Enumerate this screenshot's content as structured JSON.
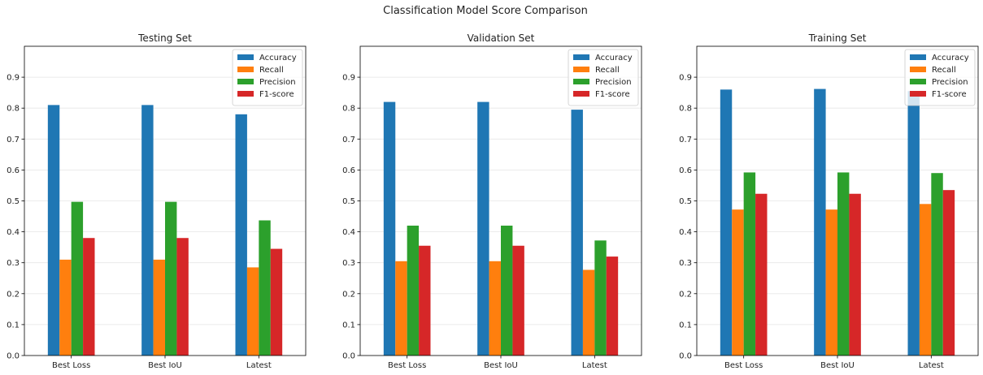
{
  "figure": {
    "suptitle": "Classification Model Score Comparison"
  },
  "chart_data": [
    {
      "type": "bar",
      "title": "Testing Set",
      "categories": [
        "Best Loss",
        "Best IoU",
        "Latest"
      ],
      "series": [
        {
          "name": "Accuracy",
          "values": [
            0.81,
            0.81,
            0.78
          ]
        },
        {
          "name": "Recall",
          "values": [
            0.31,
            0.31,
            0.285
          ]
        },
        {
          "name": "Precision",
          "values": [
            0.497,
            0.497,
            0.437
          ]
        },
        {
          "name": "F1-score",
          "values": [
            0.38,
            0.38,
            0.345
          ]
        }
      ],
      "ylim": [
        0,
        1.0
      ],
      "yticks": [
        "0.0",
        "0.1",
        "0.2",
        "0.3",
        "0.4",
        "0.5",
        "0.6",
        "0.7",
        "0.8",
        "0.9"
      ],
      "grid": "horizontal",
      "legend_position": "top-right",
      "xlabel": "",
      "ylabel": ""
    },
    {
      "type": "bar",
      "title": "Validation Set",
      "categories": [
        "Best Loss",
        "Best IoU",
        "Latest"
      ],
      "series": [
        {
          "name": "Accuracy",
          "values": [
            0.82,
            0.82,
            0.795
          ]
        },
        {
          "name": "Recall",
          "values": [
            0.305,
            0.305,
            0.277
          ]
        },
        {
          "name": "Precision",
          "values": [
            0.42,
            0.42,
            0.372
          ]
        },
        {
          "name": "F1-score",
          "values": [
            0.355,
            0.355,
            0.32
          ]
        }
      ],
      "ylim": [
        0,
        1.0
      ],
      "yticks": [
        "0.0",
        "0.1",
        "0.2",
        "0.3",
        "0.4",
        "0.5",
        "0.6",
        "0.7",
        "0.8",
        "0.9"
      ],
      "grid": "horizontal",
      "legend_position": "top-right",
      "xlabel": "",
      "ylabel": ""
    },
    {
      "type": "bar",
      "title": "Training Set",
      "categories": [
        "Best Loss",
        "Best IoU",
        "Latest"
      ],
      "series": [
        {
          "name": "Accuracy",
          "values": [
            0.86,
            0.862,
            0.855
          ]
        },
        {
          "name": "Recall",
          "values": [
            0.472,
            0.472,
            0.49
          ]
        },
        {
          "name": "Precision",
          "values": [
            0.592,
            0.592,
            0.59
          ]
        },
        {
          "name": "F1-score",
          "values": [
            0.523,
            0.523,
            0.535
          ]
        }
      ],
      "ylim": [
        0,
        1.0
      ],
      "yticks": [
        "0.0",
        "0.1",
        "0.2",
        "0.3",
        "0.4",
        "0.5",
        "0.6",
        "0.7",
        "0.8",
        "0.9"
      ],
      "grid": "horizontal",
      "legend_position": "top-right",
      "xlabel": "",
      "ylabel": ""
    }
  ],
  "colors": {
    "Accuracy": "#1f77b4",
    "Recall": "#ff7f0e",
    "Precision": "#2ca02c",
    "F1-score": "#d62728",
    "grid": "#e6e6e6",
    "axis": "#000000"
  }
}
